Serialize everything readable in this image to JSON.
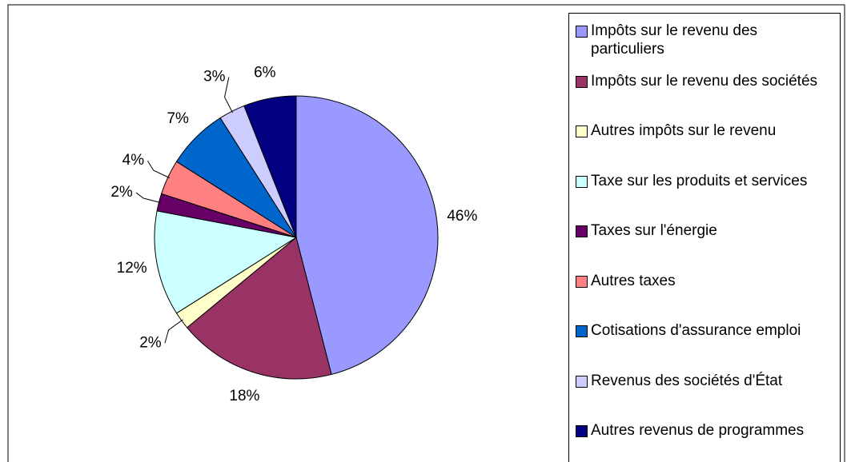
{
  "chart_data": {
    "type": "pie",
    "categories": [
      "Impôts sur le revenu des particuliers",
      "Impôts sur le revenu des sociétés",
      "Autres impôts sur le revenu",
      "Taxe sur les produits et services",
      "Taxes sur l'énergie",
      "Autres taxes",
      "Cotisations d'assurance emploi",
      "Revenus des sociétés d'État",
      "Autres revenus de programmes"
    ],
    "values": [
      46,
      18,
      2,
      12,
      2,
      4,
      7,
      3,
      6
    ],
    "value_labels": [
      "46%",
      "18%",
      "2%",
      "12%",
      "2%",
      "4%",
      "7%",
      "3%",
      "6%"
    ],
    "colors": [
      "#9999ff",
      "#993366",
      "#ffffcc",
      "#ccffff",
      "#660066",
      "#ff8080",
      "#0066cc",
      "#ccccff",
      "#000080"
    ],
    "legend": "right"
  }
}
